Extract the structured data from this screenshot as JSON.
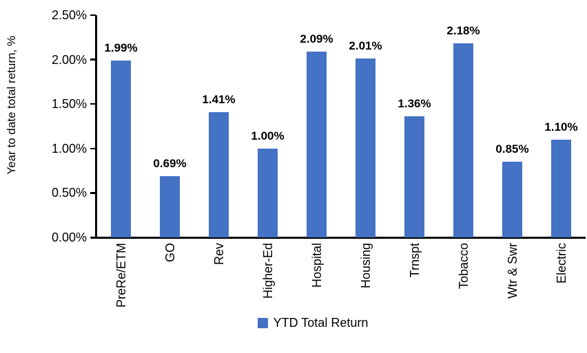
{
  "chart_data": {
    "type": "bar",
    "title": "",
    "xlabel": "",
    "ylabel": "Year to date total return, %",
    "categories": [
      "PreRe/ETM",
      "GO",
      "Rev",
      "Higher-Ed",
      "Hospital",
      "Housing",
      "Trnspt",
      "Tobacco",
      "Wtr & Swr",
      "Electric"
    ],
    "series": [
      {
        "name": "YTD Total Return",
        "values": [
          1.99,
          0.69,
          1.41,
          1.0,
          2.09,
          2.01,
          1.36,
          2.18,
          0.85,
          1.1
        ],
        "color": "#4472C4"
      }
    ],
    "data_labels": [
      "1.99%",
      "0.69%",
      "1.41%",
      "1.00%",
      "2.09%",
      "2.01%",
      "1.36%",
      "2.18%",
      "0.85%",
      "1.10%"
    ],
    "ylim": [
      0,
      2.5
    ],
    "y_ticks": [
      {
        "value": 0.0,
        "label": "0.00%"
      },
      {
        "value": 0.5,
        "label": "0.50%"
      },
      {
        "value": 1.0,
        "label": "1.00%"
      },
      {
        "value": 1.5,
        "label": "1.50%"
      },
      {
        "value": 2.0,
        "label": "2.00%"
      },
      {
        "value": 2.5,
        "label": "2.50%"
      }
    ],
    "grid": false,
    "legend": {
      "position": "bottom",
      "entries": [
        {
          "label": "YTD Total Return",
          "color": "#4472C4"
        }
      ]
    }
  }
}
